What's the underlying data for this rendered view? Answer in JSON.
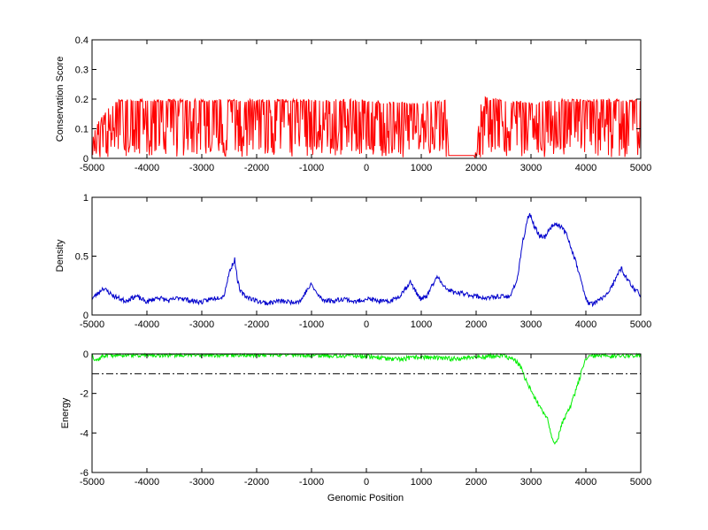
{
  "chart_data": [
    {
      "type": "line",
      "ylabel": "Conservation Score",
      "xlabel": "",
      "xlim": [
        -5000,
        5000
      ],
      "ylim": [
        0,
        0.4
      ],
      "xticks": [
        -5000,
        -4000,
        -3000,
        -2000,
        -1000,
        0,
        1000,
        2000,
        3000,
        4000,
        5000
      ],
      "yticks": [
        0,
        0.1,
        0.2,
        0.3,
        0.4
      ],
      "ytick_labels": [
        "0",
        "0.1",
        "0.2",
        "0.3",
        "0.4"
      ],
      "color": "#ff0000",
      "pattern": "dips",
      "baseline": 0.21,
      "seed": 11,
      "series": [
        {
          "x": [
            -5000,
            -4900,
            -4700,
            -4500,
            -4000,
            -3000,
            -2000,
            -1000,
            0,
            500,
            1000,
            1450,
            1500,
            1950,
            2000,
            2100,
            2500,
            3000,
            3500,
            4000,
            4500,
            5000
          ],
          "y": [
            0.07,
            0.12,
            0.17,
            0.2,
            0.2,
            0.2,
            0.2,
            0.2,
            0.2,
            0.19,
            0.19,
            0.2,
            0.01,
            0.01,
            0.03,
            0.21,
            0.2,
            0.19,
            0.2,
            0.2,
            0.2,
            0.2
          ]
        }
      ],
      "flat_segments": [
        [
          1500,
          1950,
          0.01
        ]
      ]
    },
    {
      "type": "line",
      "ylabel": "Density",
      "xlabel": "",
      "xlim": [
        -5000,
        5000
      ],
      "ylim": [
        0,
        1
      ],
      "xticks": [
        -5000,
        -4000,
        -3000,
        -2000,
        -1000,
        0,
        1000,
        2000,
        3000,
        4000,
        5000
      ],
      "yticks": [
        0,
        0.5,
        1
      ],
      "ytick_labels": [
        "0",
        "0.5",
        "1"
      ],
      "color": "#0000cc",
      "pattern": "noisy",
      "noise": 0.02,
      "seed": 23,
      "series": [
        {
          "x": [
            -5000,
            -4900,
            -4800,
            -4600,
            -4400,
            -4200,
            -4000,
            -3800,
            -3600,
            -3400,
            -3200,
            -3000,
            -2800,
            -2600,
            -2550,
            -2500,
            -2450,
            -2400,
            -2350,
            -2300,
            -2200,
            -2000,
            -1800,
            -1600,
            -1400,
            -1200,
            -1100,
            -1000,
            -900,
            -800,
            -600,
            -400,
            -200,
            0,
            200,
            400,
            600,
            800,
            900,
            1000,
            1100,
            1200,
            1300,
            1400,
            1600,
            1800,
            2000,
            2200,
            2400,
            2600,
            2750,
            2850,
            2950,
            3000,
            3050,
            3150,
            3250,
            3350,
            3450,
            3550,
            3650,
            3750,
            3850,
            3950,
            4050,
            4150,
            4300,
            4450,
            4600,
            4650,
            4700,
            4850,
            5000
          ],
          "y": [
            0.14,
            0.18,
            0.23,
            0.16,
            0.12,
            0.16,
            0.11,
            0.15,
            0.12,
            0.15,
            0.12,
            0.11,
            0.14,
            0.16,
            0.26,
            0.36,
            0.42,
            0.47,
            0.3,
            0.2,
            0.16,
            0.12,
            0.1,
            0.12,
            0.11,
            0.12,
            0.2,
            0.26,
            0.18,
            0.13,
            0.12,
            0.14,
            0.11,
            0.14,
            0.12,
            0.11,
            0.16,
            0.28,
            0.2,
            0.13,
            0.16,
            0.25,
            0.33,
            0.24,
            0.19,
            0.18,
            0.16,
            0.14,
            0.16,
            0.15,
            0.3,
            0.62,
            0.84,
            0.85,
            0.76,
            0.68,
            0.66,
            0.74,
            0.78,
            0.75,
            0.68,
            0.55,
            0.4,
            0.22,
            0.09,
            0.1,
            0.14,
            0.22,
            0.36,
            0.4,
            0.34,
            0.24,
            0.17
          ]
        }
      ]
    },
    {
      "type": "line",
      "ylabel": "Energy",
      "xlabel": "Genomic Position",
      "xlim": [
        -5000,
        5000
      ],
      "ylim": [
        -6,
        0
      ],
      "xticks": [
        -5000,
        -4000,
        -3000,
        -2000,
        -1000,
        0,
        1000,
        2000,
        3000,
        4000,
        5000
      ],
      "yticks": [
        -6,
        -4,
        -2,
        0
      ],
      "ytick_labels": [
        "-6",
        "-4",
        "-2",
        "0"
      ],
      "color": "#00ee00",
      "pattern": "noisy",
      "noise": 0.12,
      "seed": 37,
      "series": [
        {
          "x": [
            -5000,
            -4950,
            -4900,
            -4800,
            -4700,
            -4500,
            -4000,
            -3000,
            -2000,
            -1000,
            0,
            300,
            500,
            1000,
            1500,
            2000,
            2500,
            2700,
            2800,
            2900,
            3000,
            3100,
            3200,
            3300,
            3350,
            3400,
            3450,
            3500,
            3550,
            3600,
            3700,
            3800,
            3900,
            3950,
            4000,
            4100,
            4500,
            5000
          ],
          "y": [
            -0.05,
            -0.25,
            -0.3,
            -0.1,
            -0.05,
            -0.05,
            -0.05,
            -0.05,
            -0.05,
            -0.05,
            -0.1,
            -0.2,
            -0.3,
            -0.15,
            -0.25,
            -0.15,
            -0.1,
            -0.3,
            -0.6,
            -1.3,
            -1.8,
            -2.4,
            -2.9,
            -3.2,
            -3.9,
            -4.3,
            -4.6,
            -4.2,
            -3.6,
            -3.3,
            -2.8,
            -2.0,
            -1.1,
            -0.6,
            -0.3,
            -0.1,
            -0.1,
            -0.05
          ]
        }
      ],
      "reference_line": {
        "y": -1,
        "style": "dash-dot",
        "color": "#000000"
      }
    }
  ]
}
